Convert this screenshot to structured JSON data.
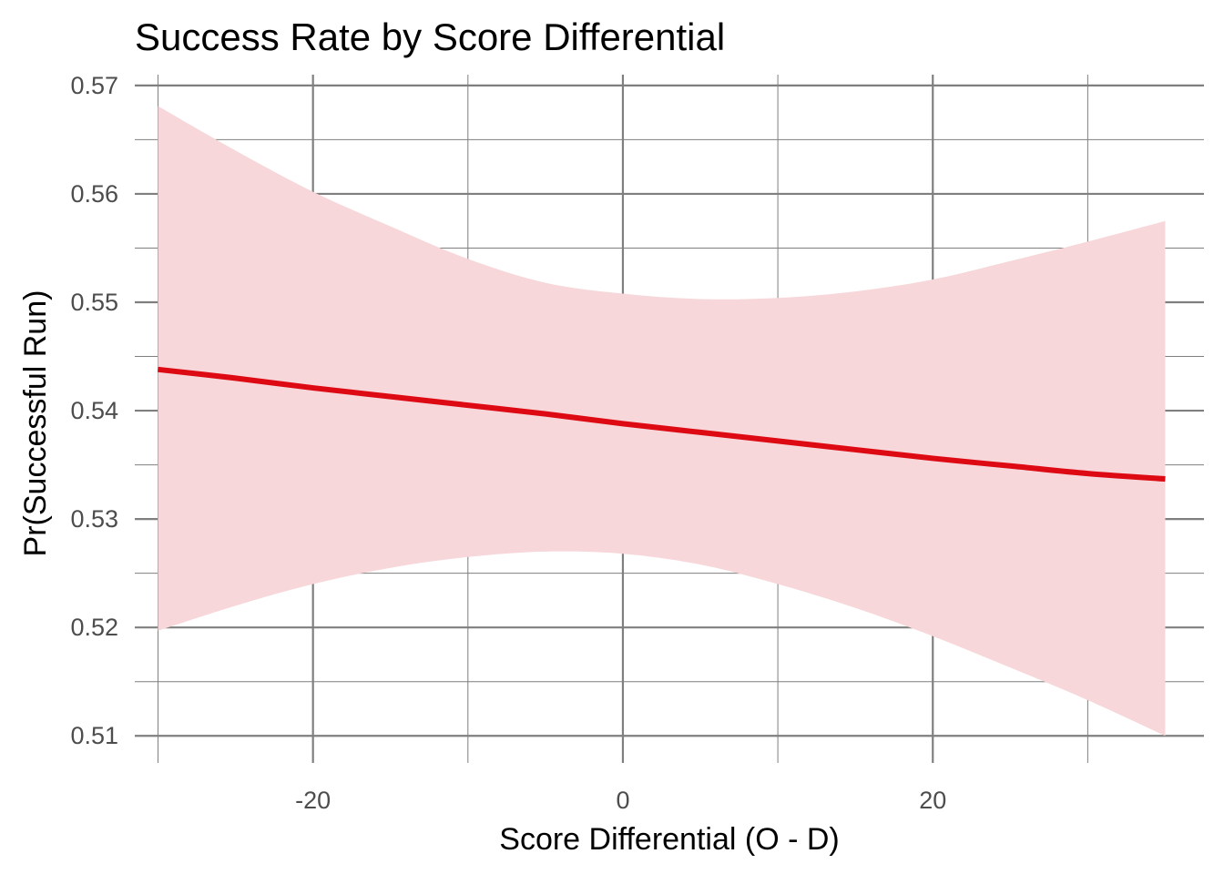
{
  "chart_data": {
    "type": "line",
    "title": "Success Rate by Score Differential",
    "xlabel": "Score Differential (O - D)",
    "ylabel": "Pr(Successful Run)",
    "xlim": [
      -31.5,
      37.5
    ],
    "ylim": [
      0.5075,
      0.571
    ],
    "x_ticks": [
      -20,
      0,
      20
    ],
    "x_tick_labels": [
      "-20",
      "0",
      "20"
    ],
    "y_ticks": [
      0.51,
      0.52,
      0.53,
      0.54,
      0.55,
      0.56,
      0.57
    ],
    "y_tick_labels": [
      "0.51",
      "0.52",
      "0.53",
      "0.54",
      "0.55",
      "0.56",
      "0.57"
    ],
    "grid": true,
    "legend": "none",
    "line_color": "#dd0a14",
    "ribbon_color": "#f7d7d9",
    "series": [
      {
        "x": [
          -30,
          -25,
          -20,
          -15,
          -10,
          -5,
          0,
          5,
          10,
          15,
          20,
          25,
          30,
          35
        ],
        "y": [
          0.5438,
          0.543,
          0.5421,
          0.5413,
          0.5405,
          0.5397,
          0.5388,
          0.538,
          0.5372,
          0.5364,
          0.5356,
          0.5349,
          0.5342,
          0.5337
        ],
        "lower": [
          0.5197,
          0.522,
          0.524,
          0.5255,
          0.5265,
          0.527,
          0.5268,
          0.5258,
          0.524,
          0.5218,
          0.5192,
          0.5163,
          0.5133,
          0.51
        ],
        "upper": [
          0.5681,
          0.564,
          0.5602,
          0.557,
          0.554,
          0.5518,
          0.5508,
          0.5503,
          0.5504,
          0.551,
          0.5521,
          0.5538,
          0.5556,
          0.5575
        ]
      }
    ]
  }
}
